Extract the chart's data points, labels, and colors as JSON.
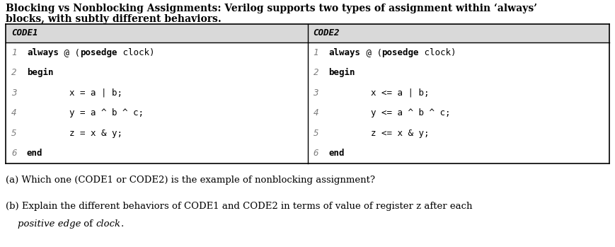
{
  "title_line1": "Blocking vs Nonblocking Assignments: Verilog supports two types of assignment within ‘always’",
  "title_line2": "blocks, with subtly different behaviors.",
  "col1_header": "CODE1",
  "col2_header": "CODE2",
  "code1_lines": [
    [
      "1",
      "always",
      " @ (",
      "posedge",
      " clock)"
    ],
    [
      "2",
      "begin",
      "",
      "",
      ""
    ],
    [
      "3",
      "        x = a | b;",
      "",
      "",
      ""
    ],
    [
      "4",
      "        y = a ^ b ^ c;",
      "",
      "",
      ""
    ],
    [
      "5",
      "        z = x & y;",
      "",
      "",
      ""
    ],
    [
      "6",
      "end",
      "",
      "",
      ""
    ]
  ],
  "code2_lines": [
    [
      "1",
      "always",
      " @ (",
      "posedge",
      " clock)"
    ],
    [
      "2",
      "begin",
      "",
      "",
      ""
    ],
    [
      "3",
      "        x <= a | b;",
      "",
      "",
      ""
    ],
    [
      "4",
      "        y <= a ^ b ^ c;",
      "",
      "",
      ""
    ],
    [
      "5",
      "        z <= x & y;",
      "",
      "",
      ""
    ],
    [
      "6",
      "end",
      "",
      "",
      ""
    ]
  ],
  "question_a": "(a) Which one (CODE1 or CODE2) is the example of nonblocking assignment?",
  "question_b1": "(b) Explain the different behaviors of CODE1 and CODE2 in terms of value of register z after each",
  "bg_color": "#ffffff",
  "header_bg": "#d9d9d9",
  "line_number_color": "#7f7f7f",
  "code_fs": 9.0,
  "header_fs": 9.0,
  "title_fs": 10.0,
  "q_fs": 9.5
}
